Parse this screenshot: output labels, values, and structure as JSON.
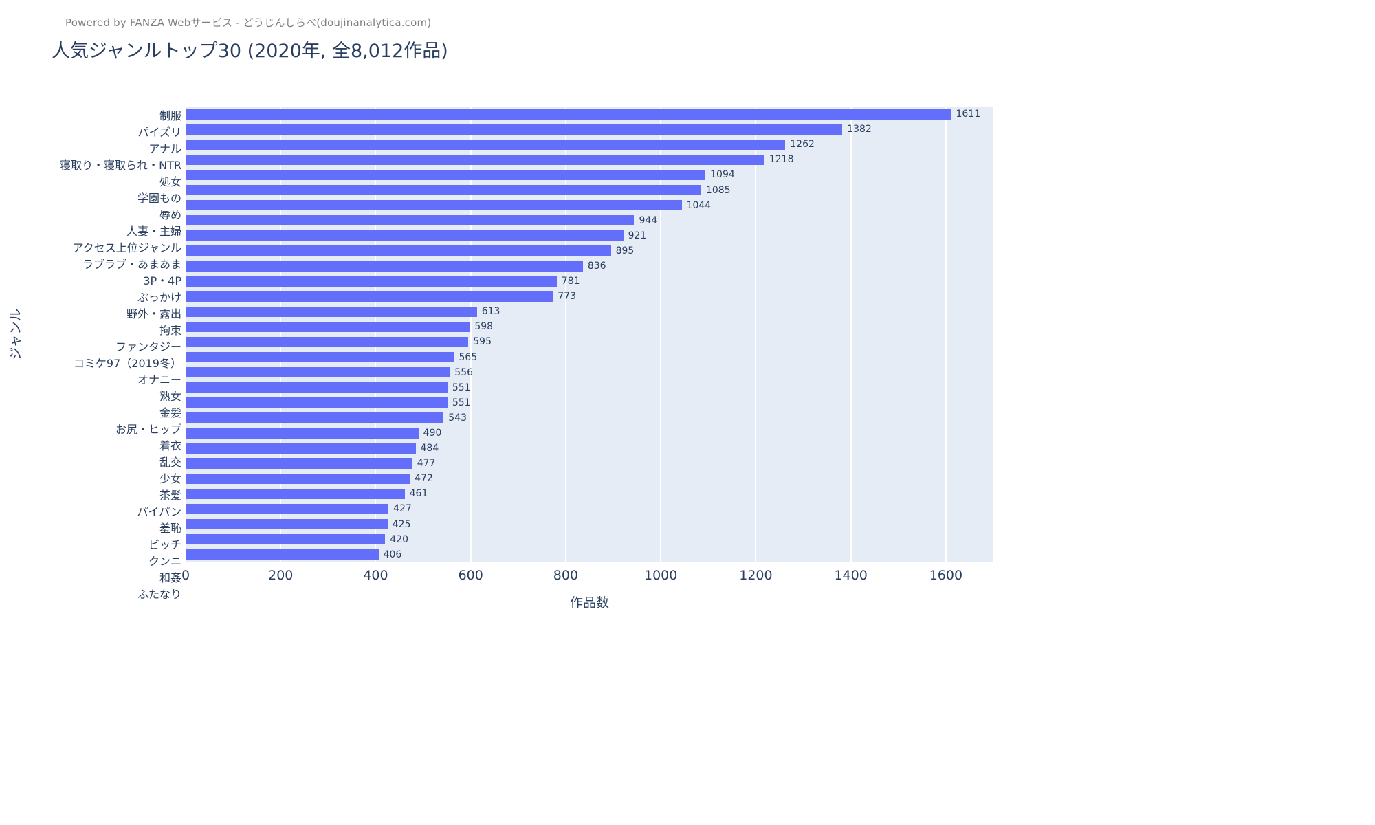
{
  "header": {
    "powered_by": "Powered by FANZA Webサービス - どうじんしらべ(doujinanalytica.com)",
    "title": "人気ジャンルトップ30 (2020年, 全8,012作品)"
  },
  "chart_data": {
    "type": "bar",
    "orientation": "horizontal",
    "title": "人気ジャンルトップ30 (2020年, 全8,012作品)",
    "xlabel": "作品数",
    "ylabel": "ジャンル",
    "xlim": [
      0,
      1700
    ],
    "xticks": [
      0,
      200,
      400,
      600,
      800,
      1000,
      1200,
      1400,
      1600
    ],
    "grid": true,
    "legend": false,
    "categories": [
      "制服",
      "パイズリ",
      "アナル",
      "寝取り・寝取られ・NTR",
      "処女",
      "学園もの",
      "辱め",
      "人妻・主婦",
      "アクセス上位ジャンル",
      "ラブラブ・あまあま",
      "3P・4P",
      "ぶっかけ",
      "野外・露出",
      "拘束",
      "ファンタジー",
      "コミケ97（2019冬）",
      "オナニー",
      "熟女",
      "金髪",
      "お尻・ヒップ",
      "着衣",
      "乱交",
      "少女",
      "茶髪",
      "パイパン",
      "羞恥",
      "ビッチ",
      "クンニ",
      "和姦",
      "ふたなり"
    ],
    "values": [
      1611,
      1382,
      1262,
      1218,
      1094,
      1085,
      1044,
      944,
      921,
      895,
      836,
      781,
      773,
      613,
      598,
      595,
      565,
      556,
      551,
      551,
      543,
      490,
      484,
      477,
      472,
      461,
      427,
      425,
      420,
      406
    ],
    "colors": {
      "bar": "#636efa",
      "plot_background": "#e5ecf6",
      "gridline": "#ffffff",
      "text": "#2a3f5f",
      "powered_by_text": "#7f7f7f"
    }
  }
}
